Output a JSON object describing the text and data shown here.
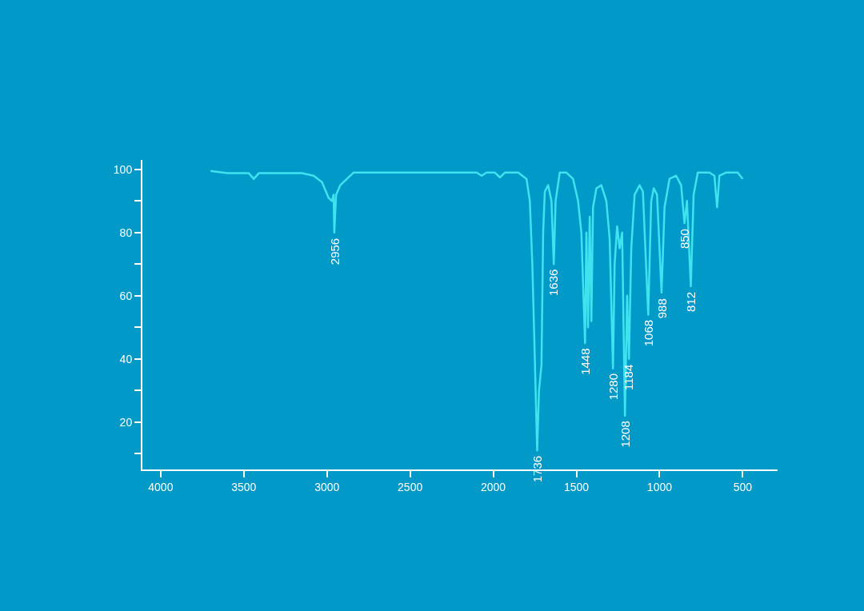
{
  "chart_data": {
    "type": "line",
    "color": "#3fe3f0",
    "grid": false,
    "legend": false,
    "marker": "none",
    "line_style": "solid",
    "x": [
      3700,
      3600,
      3470,
      3440,
      3410,
      3150,
      3080,
      3030,
      2990,
      2970,
      2960,
      2956,
      2945,
      2920,
      2880,
      2840,
      2600,
      2100,
      2070,
      2040,
      1990,
      1960,
      1930,
      1850,
      1800,
      1780,
      1765,
      1750,
      1736,
      1725,
      1710,
      1700,
      1690,
      1670,
      1650,
      1636,
      1625,
      1600,
      1560,
      1520,
      1490,
      1470,
      1448,
      1440,
      1430,
      1420,
      1410,
      1400,
      1380,
      1350,
      1320,
      1300,
      1280,
      1270,
      1255,
      1240,
      1225,
      1208,
      1195,
      1184,
      1170,
      1150,
      1120,
      1100,
      1068,
      1050,
      1035,
      1015,
      988,
      970,
      940,
      900,
      870,
      850,
      835,
      812,
      795,
      770,
      700,
      670,
      654,
      640,
      600,
      530,
      500
    ],
    "values": [
      99.5,
      98.8,
      98.8,
      97,
      98.8,
      98.8,
      98,
      96,
      91,
      90,
      92,
      80,
      92,
      95,
      97,
      99,
      99,
      99,
      98,
      99,
      99,
      97.5,
      99,
      99,
      97,
      90,
      70,
      40,
      11,
      30,
      38,
      80,
      93,
      95,
      90,
      70,
      90,
      99,
      99,
      97,
      90,
      80,
      45,
      80,
      50,
      85,
      52,
      88,
      94,
      95,
      90,
      78,
      37,
      70,
      82,
      75,
      80,
      22,
      60,
      40,
      75,
      92,
      95,
      93,
      54,
      90,
      94,
      92,
      61,
      88,
      97,
      98,
      95,
      83,
      90,
      63,
      92,
      99,
      99,
      98,
      88,
      98,
      99,
      99,
      97
    ],
    "xlim": [
      4110,
      290
    ],
    "ylim": [
      5,
      103
    ],
    "xticks": [
      4000,
      3500,
      3000,
      2500,
      2000,
      1500,
      1000,
      500
    ],
    "yticks": [
      {
        "value": 10,
        "label": null
      },
      20,
      {
        "value": 30,
        "label": null
      },
      40,
      {
        "value": 50,
        "label": null
      },
      60,
      {
        "value": 70,
        "label": null
      },
      80,
      {
        "value": 90,
        "label": null
      },
      100
    ],
    "annotations": [
      {
        "text": "2956",
        "x": 2956,
        "y": 80
      },
      {
        "text": "1736",
        "x": 1736,
        "y": 11
      },
      {
        "text": "1636",
        "x": 1636,
        "y": 70
      },
      {
        "text": "1448",
        "x": 1448,
        "y": 45
      },
      {
        "text": "1280",
        "x": 1280,
        "y": 37
      },
      {
        "text": "1208",
        "x": 1208,
        "y": 22
      },
      {
        "text": "1184",
        "x": 1184,
        "y": 40
      },
      {
        "text": "1068",
        "x": 1068,
        "y": 54
      },
      {
        "text": "988",
        "x": 988,
        "y": 61
      },
      {
        "text": "850",
        "x": 850,
        "y": 83
      },
      {
        "text": "812",
        "x": 812,
        "y": 63
      }
    ]
  }
}
